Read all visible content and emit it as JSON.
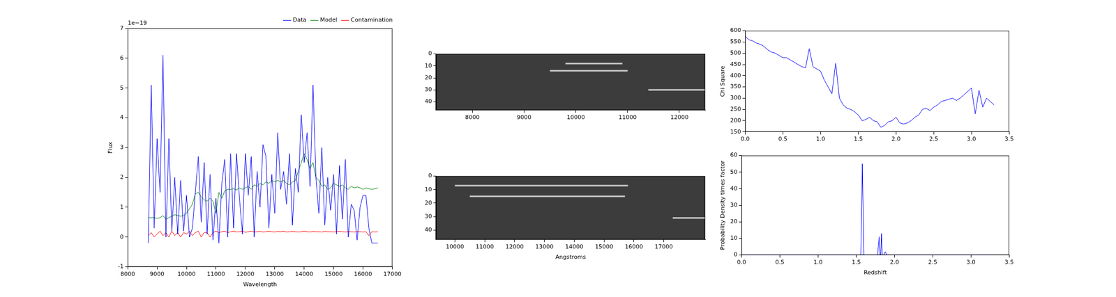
{
  "chart_data": [
    {
      "type": "line",
      "x_label": "Wavelength",
      "y_label": "Flux",
      "annotation": "1e−19",
      "xlim": [
        8000,
        17000
      ],
      "xticks": [
        8000,
        9000,
        10000,
        11000,
        12000,
        13000,
        14000,
        15000,
        16000,
        17000
      ],
      "ylim": [
        -1,
        7
      ],
      "yticks": [
        -1,
        0,
        1,
        2,
        3,
        4,
        5,
        6,
        7
      ],
      "grid": false,
      "legend": "upper right",
      "x": [
        8700,
        8800,
        8900,
        9000,
        9100,
        9200,
        9300,
        9400,
        9500,
        9600,
        9700,
        9800,
        9900,
        10000,
        10100,
        10200,
        10300,
        10400,
        10500,
        10600,
        10700,
        10800,
        10900,
        11000,
        11100,
        11200,
        11300,
        11400,
        11500,
        11600,
        11700,
        11800,
        11900,
        12000,
        12100,
        12200,
        12300,
        12400,
        12500,
        12600,
        12700,
        12800,
        12900,
        13000,
        13100,
        13200,
        13300,
        13400,
        13500,
        13600,
        13700,
        13800,
        13900,
        14000,
        14100,
        14200,
        14300,
        14400,
        14500,
        14600,
        14700,
        14800,
        14900,
        15000,
        15100,
        15200,
        15300,
        15400,
        15500,
        15600,
        15700,
        15800,
        15900,
        16000,
        16100,
        16200,
        16300,
        16400,
        16500
      ],
      "series": [
        {
          "name": "Data",
          "color": "#0000ff",
          "values": [
            -0.2,
            5.1,
            0.3,
            3.3,
            1.5,
            6.1,
            0.0,
            3.3,
            0.2,
            2.0,
            0.1,
            1.9,
            0.2,
            1.4,
            0.0,
            0.3,
            1.5,
            2.7,
            0.5,
            2.5,
            0.1,
            2.1,
            -0.1,
            1.3,
            -0.2,
            1.8,
            2.6,
            0.0,
            2.8,
            0.3,
            2.8,
            1.3,
            0.1,
            2.8,
            1.4,
            2.7,
            0.0,
            2.2,
            1.0,
            3.1,
            2.7,
            0.3,
            2.1,
            0.8,
            3.5,
            1.6,
            2.2,
            1.1,
            2.8,
            0.4,
            2.3,
            1.5,
            4.1,
            2.5,
            3.5,
            1.7,
            5.1,
            2.0,
            0.8,
            3.0,
            0.4,
            2.0,
            0.9,
            2.1,
            0.1,
            2.4,
            0.6,
            2.6,
            0.0,
            1.1,
            0.9,
            -0.1,
            1.0,
            1.4,
            1.4,
            0.3,
            -0.2,
            -0.2,
            -0.2
          ]
        },
        {
          "name": "Model",
          "color": "#008000",
          "values": [
            0.65,
            0.65,
            0.65,
            0.63,
            0.65,
            0.72,
            0.6,
            0.65,
            0.7,
            0.75,
            0.72,
            0.7,
            0.72,
            0.8,
            0.95,
            1.1,
            1.45,
            1.5,
            1.35,
            1.25,
            1.2,
            1.3,
            1.2,
            0.8,
            1.5,
            1.3,
            1.55,
            1.6,
            1.6,
            1.62,
            1.58,
            1.65,
            1.6,
            1.65,
            1.7,
            1.6,
            1.75,
            1.7,
            1.8,
            1.75,
            1.85,
            1.8,
            1.9,
            1.85,
            1.9,
            1.85,
            1.9,
            1.8,
            1.75,
            1.85,
            1.9,
            2.2,
            2.5,
            2.8,
            2.6,
            2.3,
            2.5,
            2.0,
            1.9,
            1.7,
            1.75,
            1.6,
            1.65,
            1.8,
            1.75,
            1.7,
            1.75,
            1.65,
            1.6,
            1.7,
            1.65,
            1.68,
            1.65,
            1.6,
            1.65,
            1.62,
            1.6,
            1.62,
            1.65
          ]
        },
        {
          "name": "Contamination",
          "color": "#ff0000",
          "values": [
            0.05,
            0.15,
            0.0,
            0.1,
            0.2,
            0.05,
            0.15,
            0.0,
            0.2,
            0.05,
            0.15,
            0.0,
            0.15,
            0.1,
            0.2,
            0.05,
            0.15,
            0.2,
            0.0,
            0.15,
            0.15,
            0.0,
            0.15,
            0.2,
            0.15,
            0.18,
            0.2,
            0.15,
            0.18,
            0.2,
            0.17,
            0.18,
            0.2,
            0.16,
            0.18,
            0.2,
            0.17,
            0.18,
            0.19,
            0.17,
            0.18,
            0.2,
            0.18,
            0.17,
            0.19,
            0.18,
            0.2,
            0.17,
            0.18,
            0.19,
            0.18,
            0.17,
            0.18,
            0.2,
            0.18,
            0.17,
            0.19,
            0.18,
            0.18,
            0.17,
            0.19,
            0.18,
            0.18,
            0.17,
            0.18,
            0.19,
            0.18,
            0.17,
            0.18,
            0.18,
            0.17,
            0.18,
            0.18,
            0.17,
            0.18,
            0.05,
            0.18,
            0.17,
            0.18
          ]
        }
      ]
    },
    {
      "type": "image",
      "xlim": [
        7300,
        12500
      ],
      "xticks": [
        8000,
        9000,
        10000,
        11000,
        12000
      ],
      "ylim": [
        0,
        47
      ],
      "yticks": [
        0,
        10,
        20,
        30,
        40
      ],
      "grid": false,
      "streaks": [
        {
          "x": [
            9800,
            10900
          ],
          "y": 8
        },
        {
          "x": [
            9500,
            11000
          ],
          "y": 14
        },
        {
          "x": [
            11400,
            12500
          ],
          "y": 30
        }
      ]
    },
    {
      "type": "image",
      "x_label": "Angstroms",
      "xlim": [
        9370,
        18390
      ],
      "xticks": [
        10000,
        11000,
        12000,
        13000,
        14000,
        15000,
        16000,
        17000
      ],
      "ylim": [
        0,
        47
      ],
      "yticks": [
        0,
        10,
        20,
        30,
        40
      ],
      "grid": false,
      "streaks": [
        {
          "x": [
            10000,
            15800
          ],
          "y": 7
        },
        {
          "x": [
            10500,
            15700
          ],
          "y": 15
        },
        {
          "x": [
            17300,
            18390
          ],
          "y": 31
        }
      ]
    },
    {
      "type": "line",
      "y_label": "Chi Square",
      "xlim": [
        0,
        3.5
      ],
      "xticks": [
        {
          "value": 0,
          "label": "0.0"
        },
        {
          "value": 0.5,
          "label": "0.5"
        },
        {
          "value": 1,
          "label": "1.0"
        },
        {
          "value": 1.5,
          "label": "1.5"
        },
        {
          "value": 2,
          "label": "2.0"
        },
        {
          "value": 2.5,
          "label": "2.5"
        },
        {
          "value": 3,
          "label": "3.0"
        },
        {
          "value": 3.5,
          "label": "3.5"
        }
      ],
      "ylim": [
        150,
        600
      ],
      "yticks": [
        150,
        200,
        250,
        300,
        350,
        400,
        450,
        500,
        550,
        600
      ],
      "grid": false,
      "color": "#0000ff",
      "x": [
        0,
        0.05,
        0.1,
        0.15,
        0.2,
        0.25,
        0.3,
        0.35,
        0.4,
        0.45,
        0.5,
        0.55,
        0.6,
        0.65,
        0.7,
        0.75,
        0.8,
        0.85,
        0.9,
        0.95,
        1.0,
        1.05,
        1.1,
        1.15,
        1.2,
        1.25,
        1.3,
        1.35,
        1.4,
        1.45,
        1.5,
        1.55,
        1.6,
        1.65,
        1.7,
        1.75,
        1.8,
        1.85,
        1.9,
        1.95,
        2.0,
        2.05,
        2.1,
        2.15,
        2.2,
        2.25,
        2.3,
        2.35,
        2.4,
        2.45,
        2.5,
        2.55,
        2.6,
        2.65,
        2.7,
        2.75,
        2.8,
        2.85,
        2.9,
        2.95,
        3.0,
        3.05,
        3.1,
        3.15,
        3.2,
        3.25,
        3.3
      ],
      "values": [
        575,
        560,
        555,
        545,
        540,
        530,
        515,
        505,
        500,
        490,
        480,
        480,
        470,
        460,
        450,
        440,
        435,
        520,
        440,
        430,
        420,
        380,
        350,
        320,
        455,
        300,
        270,
        255,
        250,
        240,
        225,
        200,
        205,
        215,
        200,
        195,
        170,
        180,
        195,
        200,
        215,
        190,
        185,
        190,
        200,
        215,
        225,
        250,
        255,
        245,
        260,
        270,
        285,
        290,
        295,
        300,
        290,
        300,
        315,
        330,
        345,
        230,
        335,
        260,
        300,
        285,
        270
      ]
    },
    {
      "type": "line",
      "x_label": "Redshift",
      "y_label": "Probability Density times factor",
      "xlim": [
        0,
        3.5
      ],
      "xticks": [
        {
          "value": 0,
          "label": "0.0"
        },
        {
          "value": 0.5,
          "label": "0.5"
        },
        {
          "value": 1,
          "label": "1.0"
        },
        {
          "value": 1.5,
          "label": "1.5"
        },
        {
          "value": 2,
          "label": "2.0"
        },
        {
          "value": 2.5,
          "label": "2.5"
        },
        {
          "value": 3,
          "label": "3.0"
        },
        {
          "value": 3.5,
          "label": "3.5"
        }
      ],
      "ylim": [
        0,
        60
      ],
      "yticks": [
        0,
        10,
        20,
        30,
        40,
        50,
        60
      ],
      "grid": false,
      "color": "#0000ff",
      "x": [
        0,
        1.5,
        1.56,
        1.58,
        1.6,
        1.62,
        1.75,
        1.78,
        1.8,
        1.81,
        1.82,
        1.83,
        1.84,
        1.86,
        1.88,
        1.9,
        2.0,
        3.3
      ],
      "values": [
        0,
        0,
        0,
        55,
        0,
        0,
        0,
        0,
        11,
        0,
        0,
        13,
        0,
        0,
        2,
        0,
        0,
        0
      ]
    }
  ]
}
